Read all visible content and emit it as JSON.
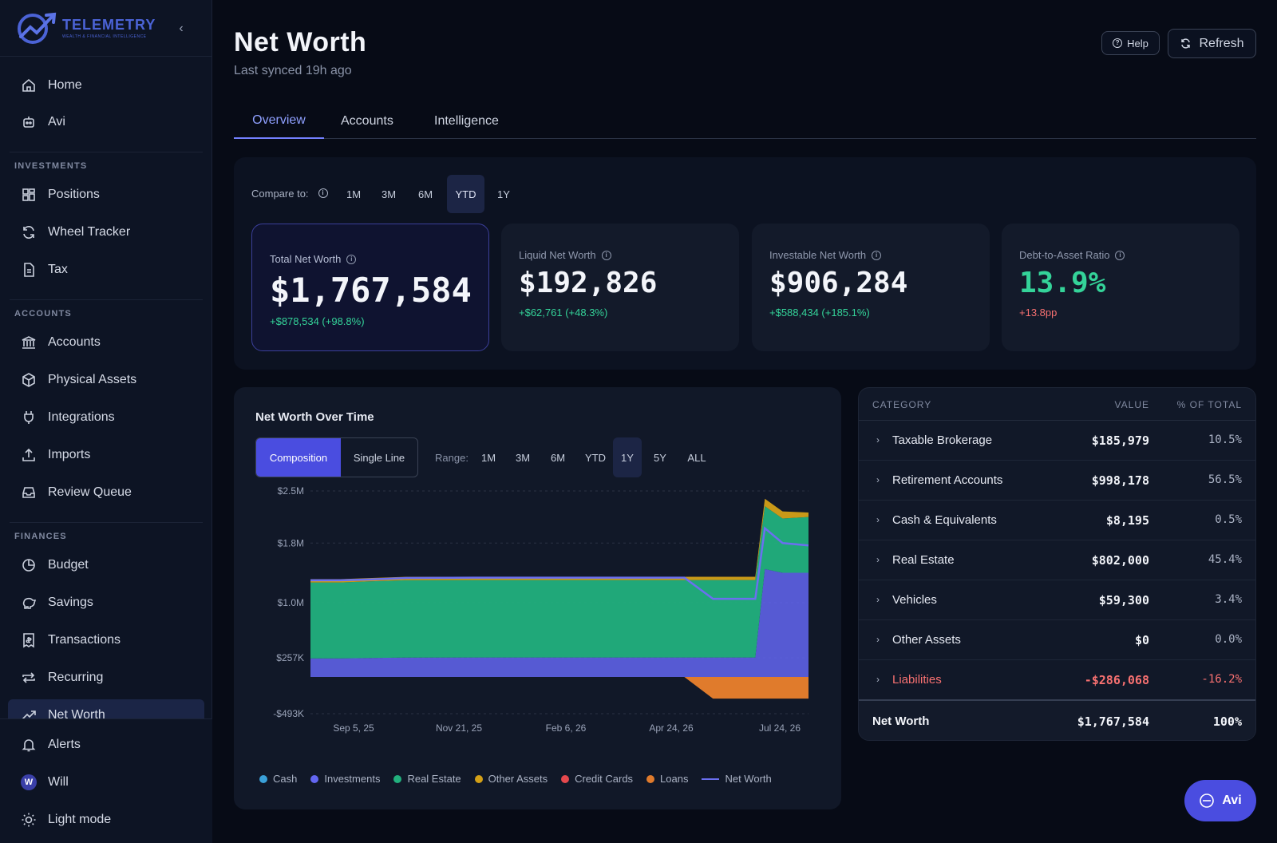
{
  "brand": {
    "name": "TELEMETRY",
    "tagline": "WEALTH & FINANCIAL INTELLIGENCE"
  },
  "sidebar": {
    "top": [
      {
        "label": "Home"
      },
      {
        "label": "Avi"
      }
    ],
    "investments_label": "INVESTMENTS",
    "investments": [
      {
        "label": "Positions"
      },
      {
        "label": "Wheel Tracker"
      },
      {
        "label": "Tax"
      }
    ],
    "accounts_label": "ACCOUNTS",
    "accounts": [
      {
        "label": "Accounts"
      },
      {
        "label": "Physical Assets"
      },
      {
        "label": "Integrations"
      },
      {
        "label": "Imports"
      },
      {
        "label": "Review Queue"
      }
    ],
    "finances_label": "FINANCES",
    "finances": [
      {
        "label": "Budget"
      },
      {
        "label": "Savings"
      },
      {
        "label": "Transactions"
      },
      {
        "label": "Recurring"
      },
      {
        "label": "Net Worth"
      }
    ],
    "bottom": [
      {
        "label": "Alerts"
      },
      {
        "label": "Will",
        "initial": "W"
      },
      {
        "label": "Light mode"
      }
    ]
  },
  "header": {
    "title": "Net Worth",
    "subtitle": "Last synced 19h ago",
    "help": "Help",
    "refresh": "Refresh"
  },
  "tabs": [
    "Overview",
    "Accounts",
    "Intelligence"
  ],
  "compare": {
    "label": "Compare to:",
    "options": [
      "1M",
      "3M",
      "6M",
      "YTD",
      "1Y"
    ],
    "selected": "YTD"
  },
  "kpis": [
    {
      "label": "Total Net Worth",
      "value": "$1,767,584",
      "change": "+$878,534 (+98.8%)",
      "change_color": "#34d399"
    },
    {
      "label": "Liquid Net Worth",
      "value": "$192,826",
      "change": "+$62,761 (+48.3%)",
      "change_color": "#34d399"
    },
    {
      "label": "Investable Net Worth",
      "value": "$906,284",
      "change": "+$588,434 (+185.1%)",
      "change_color": "#34d399"
    },
    {
      "label": "Debt-to-Asset Ratio",
      "value": "13.9%",
      "change": "+13.8pp",
      "change_color": "#f87171",
      "value_color": "#34d399"
    }
  ],
  "chart": {
    "title": "Net Worth Over Time",
    "modes": [
      "Composition",
      "Single Line"
    ],
    "mode_selected": "Composition",
    "range_label": "Range:",
    "ranges": [
      "1M",
      "3M",
      "6M",
      "YTD",
      "1Y",
      "5Y",
      "ALL"
    ],
    "range_selected": "1Y",
    "legend": [
      {
        "label": "Cash",
        "color": "#3aa0d8"
      },
      {
        "label": "Investments",
        "color": "#6366f1"
      },
      {
        "label": "Real Estate",
        "color": "#22b07d"
      },
      {
        "label": "Other Assets",
        "color": "#d4a017"
      },
      {
        "label": "Credit Cards",
        "color": "#e5484d"
      },
      {
        "label": "Loans",
        "color": "#e07b2c"
      },
      {
        "label": "Net Worth",
        "color": "#6b6ff0",
        "line": true
      }
    ]
  },
  "chart_data": {
    "type": "area",
    "title": "Net Worth Over Time",
    "y_tick_labels": [
      "$2.5M",
      "$1.8M",
      "$1.0M",
      "$257K",
      "-$493K"
    ],
    "y_ticks": [
      2500000,
      1800000,
      1000000,
      257000,
      -493000
    ],
    "ylim": [
      -493000,
      2500000
    ],
    "x_tick_labels": [
      "Sep 5, 25",
      "Nov 21, 25",
      "Feb 6, 26",
      "Apr 24, 26",
      "Jul 24, 26"
    ],
    "x": [
      "2025-07-24",
      "2025-08-15",
      "2025-09-05",
      "2025-10-01",
      "2025-11-21",
      "2026-01-01",
      "2026-02-06",
      "2026-03-15",
      "2026-04-24",
      "2026-05-15",
      "2026-06-15",
      "2026-06-22",
      "2026-07-05",
      "2026-07-24"
    ],
    "grid": true,
    "legend": "bottom",
    "series": [
      {
        "name": "Investments",
        "values": [
          250000,
          250000,
          255000,
          260000,
          262000,
          262000,
          262000,
          262000,
          262000,
          262000,
          262000,
          1450000,
          1400000,
          1400000
        ]
      },
      {
        "name": "Real Estate",
        "values": [
          1020000,
          1020000,
          1030000,
          1040000,
          1040000,
          1040000,
          1040000,
          1040000,
          1040000,
          1040000,
          1040000,
          845000,
          730000,
          750000
        ]
      },
      {
        "name": "Other Assets",
        "values": [
          45000,
          45000,
          45000,
          45000,
          45000,
          45000,
          45000,
          45000,
          45000,
          45000,
          45000,
          100000,
          95000,
          60000
        ]
      },
      {
        "name": "Loans",
        "values": [
          0,
          0,
          0,
          0,
          0,
          0,
          0,
          0,
          0,
          -290000,
          -290000,
          -290000,
          -290000,
          -290000
        ]
      },
      {
        "name": "Net Worth",
        "values": [
          1300000,
          1300000,
          1310000,
          1330000,
          1335000,
          1335000,
          1335000,
          1335000,
          1335000,
          1050000,
          1050000,
          2000000,
          1800000,
          1767584
        ]
      }
    ]
  },
  "table": {
    "headers": [
      "CATEGORY",
      "VALUE",
      "% OF TOTAL"
    ],
    "rows": [
      {
        "name": "Taxable Brokerage",
        "value": "$185,979",
        "pct": "10.5%"
      },
      {
        "name": "Retirement Accounts",
        "value": "$998,178",
        "pct": "56.5%"
      },
      {
        "name": "Cash & Equivalents",
        "value": "$8,195",
        "pct": "0.5%"
      },
      {
        "name": "Real Estate",
        "value": "$802,000",
        "pct": "45.4%"
      },
      {
        "name": "Vehicles",
        "value": "$59,300",
        "pct": "3.4%"
      },
      {
        "name": "Other Assets",
        "value": "$0",
        "pct": "0.0%"
      },
      {
        "name": "Liabilities",
        "value": "-$286,068",
        "pct": "-16.2%",
        "negative": true
      }
    ],
    "total": {
      "name": "Net Worth",
      "value": "$1,767,584",
      "pct": "100%"
    }
  },
  "fab": {
    "label": "Avi"
  }
}
